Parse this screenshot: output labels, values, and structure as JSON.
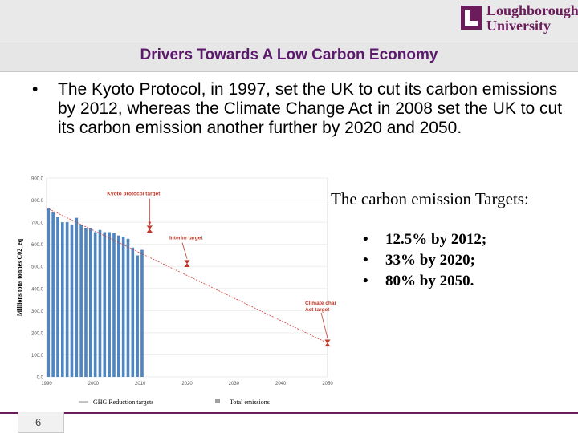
{
  "logo": {
    "line1": "Loughborough",
    "line2": "University",
    "mark": "university-crest-icon"
  },
  "slide": {
    "title": "Drivers Towards A Low Carbon Economy",
    "bullet": "The Kyoto Protocol, in 1997, set the UK to cut its carbon emissions by 2012, whereas the Climate Change Act in 2008 set the UK to cut its carbon emission another further by 2020 and 2050.",
    "targets_heading": "The carbon emission Targets:",
    "targets": [
      "12.5% by 2012;",
      "33% by 2020;",
      "80% by 2050."
    ],
    "page_number": "6"
  },
  "colors": {
    "accent": "#6c1b5b",
    "bar": "#4f86c0",
    "target_line": "#d43a3a",
    "annotation": "#c0392b"
  },
  "chart_data": {
    "type": "bar",
    "ylabel": "Millions tons tonnes C02_eq",
    "ylim": [
      0,
      900
    ],
    "xlim": [
      1990,
      2050
    ],
    "yticks": [
      "0.0",
      "100.0",
      "200.0",
      "300.0",
      "400.0",
      "500.0",
      "600.0",
      "700.0",
      "800.0",
      "900.0"
    ],
    "xticks": [
      "1990",
      "2000",
      "2010",
      "2020",
      "2030",
      "2040",
      "2050"
    ],
    "series": [
      {
        "name": "Total emissions",
        "x": [
          1990,
          1991,
          1992,
          1993,
          1994,
          1995,
          1996,
          1997,
          1998,
          1999,
          2000,
          2001,
          2002,
          2003,
          2004,
          2005,
          2006,
          2007,
          2008,
          2009,
          2010
        ],
        "values": [
          765,
          745,
          725,
          700,
          700,
          690,
          720,
          690,
          675,
          675,
          655,
          665,
          655,
          655,
          650,
          640,
          635,
          625,
          585,
          550,
          575
        ]
      },
      {
        "name": "GHG Reduction targets",
        "x": [
          1990,
          2050
        ],
        "values": [
          765,
          153
        ]
      }
    ],
    "markers": [
      {
        "label": "Kyoto protocol target",
        "x": 2012,
        "y": 669
      },
      {
        "label": "Interim target",
        "x": 2020,
        "y": 513
      },
      {
        "label": "Climate change Act target",
        "x": 2050,
        "y": 153
      }
    ],
    "legend": [
      "GHG Reduction targets",
      "Total emissions"
    ]
  }
}
